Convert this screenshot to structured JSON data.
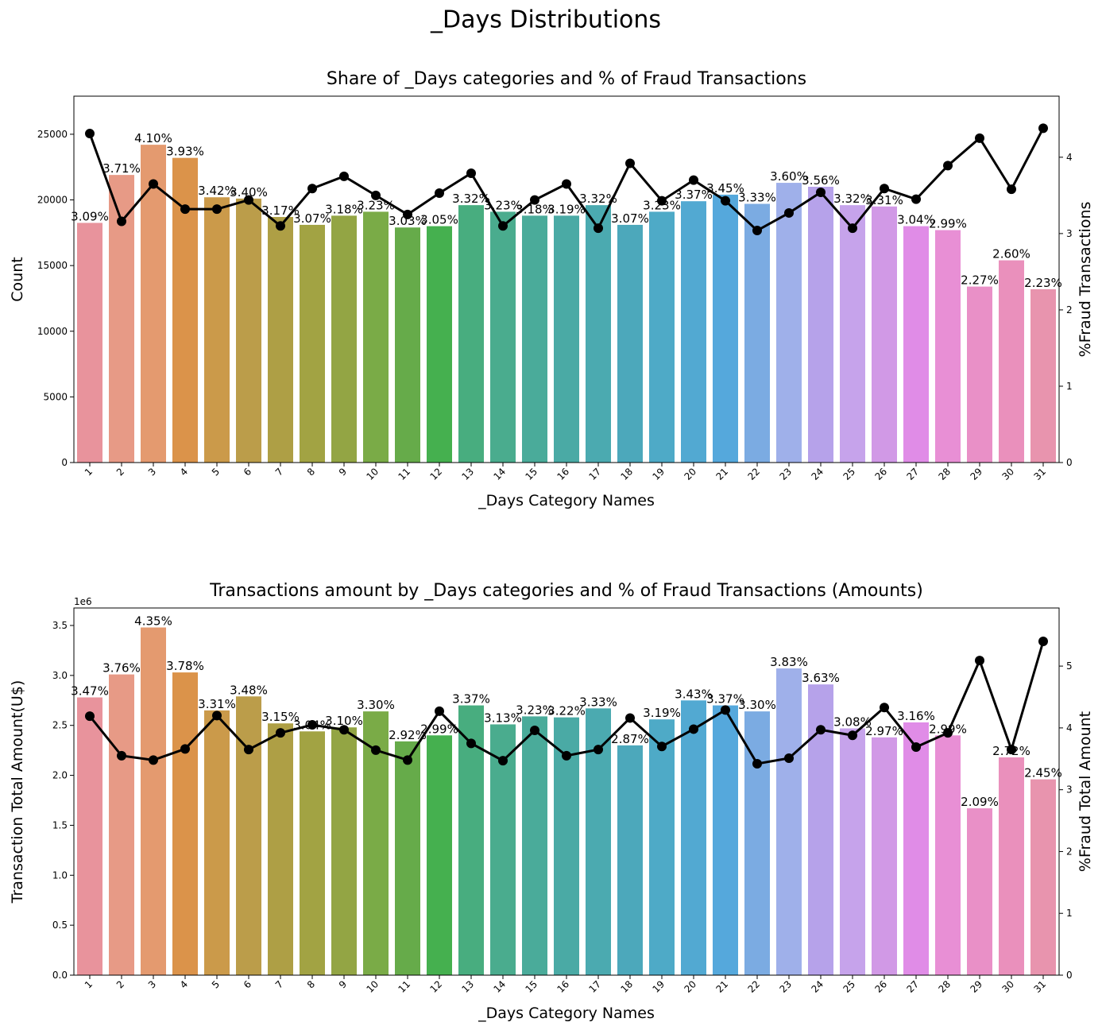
{
  "title": "_Days Distributions",
  "chart_data": [
    {
      "type": "bar",
      "title": "Share of _Days categories and % of Fraud Transactions",
      "x_label": "_Days Category Names",
      "y_label": "Count",
      "y2_label": "%Fraud Transactions",
      "categories": [
        "1",
        "2",
        "3",
        "4",
        "5",
        "6",
        "7",
        "8",
        "9",
        "10",
        "11",
        "12",
        "13",
        "14",
        "15",
        "16",
        "17",
        "18",
        "19",
        "20",
        "21",
        "22",
        "23",
        "24",
        "25",
        "26",
        "27",
        "28",
        "29",
        "30",
        "31"
      ],
      "ylim": [
        0,
        27900
      ],
      "yticks": [
        0,
        5000,
        10000,
        15000,
        20000,
        25000
      ],
      "y2lim": [
        0,
        4.8
      ],
      "y2ticks": [
        0,
        1,
        2,
        3,
        4
      ],
      "series": [
        {
          "type": "bar",
          "values": [
            18250,
            21900,
            24200,
            23200,
            20200,
            20100,
            18700,
            18100,
            18800,
            19100,
            17900,
            18000,
            19600,
            19100,
            18800,
            18800,
            19600,
            18100,
            19100,
            19900,
            20400,
            19700,
            21300,
            21000,
            19600,
            19500,
            18000,
            17700,
            13400,
            15400,
            13200
          ],
          "labels": [
            "3.09%",
            "3.71%",
            "4.10%",
            "3.93%",
            "3.42%",
            "3.40%",
            "3.17%",
            "3.07%",
            "3.18%",
            "3.23%",
            "3.03%",
            "3.05%",
            "3.32%",
            "3.23%",
            "3.18%",
            "3.19%",
            "3.32%",
            "3.07%",
            "3.23%",
            "3.37%",
            "3.45%",
            "3.33%",
            "3.60%",
            "3.56%",
            "3.32%",
            "3.31%",
            "3.04%",
            "2.99%",
            "2.27%",
            "2.60%",
            "2.23%"
          ],
          "colors": [
            "#e8939c",
            "#e79a86",
            "#e49a6f",
            "#db934a",
            "#cb9a4a",
            "#bb9d4a",
            "#ae9f45",
            "#a2a343",
            "#93a544",
            "#7aab47",
            "#66ab4a",
            "#45b04f",
            "#48ad7f",
            "#4aac8e",
            "#4aab9a",
            "#4aaaa5",
            "#4baab0",
            "#4ca8bb",
            "#4eaac7",
            "#52a9d2",
            "#55a8dc",
            "#7babe2",
            "#9fb0ea",
            "#b6a2ea",
            "#c6a3eb",
            "#d199e6",
            "#e08ce7",
            "#e88fd5",
            "#e990c7",
            "#ea90bc",
            "#e894ae"
          ]
        },
        {
          "type": "line",
          "axis": "y2",
          "color": "#000000",
          "values": [
            4.31,
            3.16,
            3.65,
            3.32,
            3.32,
            3.44,
            3.1,
            3.59,
            3.75,
            3.5,
            3.25,
            3.53,
            3.79,
            3.1,
            3.44,
            3.65,
            3.07,
            3.92,
            3.43,
            3.7,
            3.43,
            3.04,
            3.27,
            3.54,
            3.07,
            3.59,
            3.45,
            3.89,
            4.25,
            3.58,
            4.38
          ]
        }
      ]
    },
    {
      "type": "bar",
      "title": "Transactions amount by _Days categories and % of Fraud Transactions (Amounts)",
      "x_label": "_Days Category Names",
      "y_label": "Transaction Total Amount(U$)",
      "y2_label": "%Fraud Total Amount",
      "y_offset_label": "1e6",
      "categories": [
        "1",
        "2",
        "3",
        "4",
        "5",
        "6",
        "7",
        "8",
        "9",
        "10",
        "11",
        "12",
        "13",
        "14",
        "15",
        "16",
        "17",
        "18",
        "19",
        "20",
        "21",
        "22",
        "23",
        "24",
        "25",
        "26",
        "27",
        "28",
        "29",
        "30",
        "31"
      ],
      "ylim": [
        0,
        3.675
      ],
      "yticks": [
        {
          "value": 0,
          "label": "0.0"
        },
        0.5,
        {
          "value": 1,
          "label": "1.0"
        },
        1.5,
        {
          "value": 2,
          "label": "2.0"
        },
        2.5,
        {
          "value": 3,
          "label": "3.0"
        },
        3.5
      ],
      "y2lim": [
        0,
        5.94
      ],
      "y2ticks": [
        0,
        1,
        2,
        3,
        4,
        5
      ],
      "series": [
        {
          "type": "bar",
          "values": [
            2.78,
            3.01,
            3.48,
            3.03,
            2.65,
            2.79,
            2.52,
            2.44,
            2.48,
            2.64,
            2.34,
            2.4,
            2.7,
            2.51,
            2.59,
            2.58,
            2.67,
            2.3,
            2.56,
            2.75,
            2.7,
            2.64,
            3.07,
            2.91,
            2.47,
            2.38,
            2.53,
            2.4,
            1.67,
            2.18,
            1.96
          ],
          "labels": [
            "3.47%",
            "3.76%",
            "4.35%",
            "3.78%",
            "3.31%",
            "3.48%",
            "3.15%",
            "3.04%",
            "3.10%",
            "3.30%",
            "2.92%",
            "2.99%",
            "3.37%",
            "3.13%",
            "3.23%",
            "3.22%",
            "3.33%",
            "2.87%",
            "3.19%",
            "3.43%",
            "3.37%",
            "3.30%",
            "3.83%",
            "3.63%",
            "3.08%",
            "2.97%",
            "3.16%",
            "2.99%",
            "2.09%",
            "2.72%",
            "2.45%"
          ],
          "colors": [
            "#e8939c",
            "#e79a86",
            "#e49a6f",
            "#db934a",
            "#cb9a4a",
            "#bb9d4a",
            "#ae9f45",
            "#a2a343",
            "#93a544",
            "#7aab47",
            "#66ab4a",
            "#45b04f",
            "#48ad7f",
            "#4aac8e",
            "#4aab9a",
            "#4aaaa5",
            "#4baab0",
            "#4ca8bb",
            "#4eaac7",
            "#52a9d2",
            "#55a8dc",
            "#7babe2",
            "#9fb0ea",
            "#b6a2ea",
            "#c6a3eb",
            "#d199e6",
            "#e08ce7",
            "#e88fd5",
            "#e990c7",
            "#ea90bc",
            "#e894ae"
          ]
        },
        {
          "type": "line",
          "axis": "y2",
          "color": "#000000",
          "values": [
            4.19,
            3.55,
            3.48,
            3.66,
            4.2,
            3.65,
            3.92,
            4.05,
            3.97,
            3.64,
            3.48,
            4.27,
            3.75,
            3.47,
            3.96,
            3.55,
            3.65,
            4.16,
            3.7,
            3.98,
            4.29,
            3.42,
            3.51,
            3.97,
            3.88,
            4.33,
            3.69,
            3.92,
            5.09,
            3.65,
            5.4
          ]
        }
      ]
    }
  ]
}
